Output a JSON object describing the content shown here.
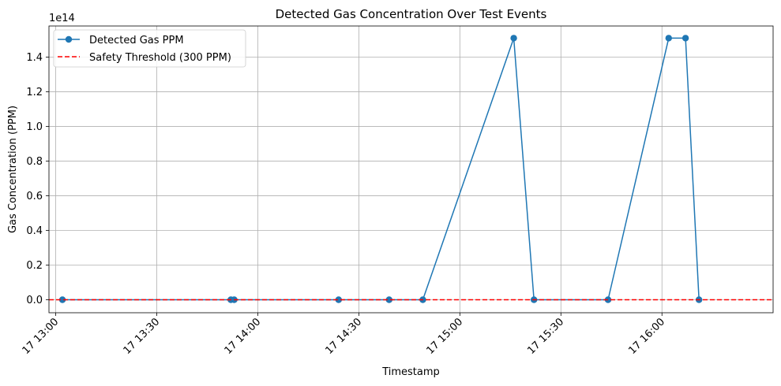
{
  "chart_data": {
    "type": "line",
    "title": "Detected Gas Concentration Over Test Events",
    "xlabel": "Timestamp",
    "ylabel": "Gas Concentration (PPM)",
    "y_offset_text": "1e14",
    "y_scale": 100000000000000.0,
    "xlim": [
      "2024-01-17 12:58",
      "2024-01-17 16:33"
    ],
    "ylim": [
      -0.075,
      1.58
    ],
    "x_ticks": [
      "17 13:00",
      "17 13:30",
      "17 14:00",
      "17 14:30",
      "17 15:00",
      "17 15:30",
      "17 16:00"
    ],
    "x_tick_values": [
      "2024-01-17 13:00",
      "2024-01-17 13:30",
      "2024-01-17 14:00",
      "2024-01-17 14:30",
      "2024-01-17 15:00",
      "2024-01-17 15:30",
      "2024-01-17 16:00"
    ],
    "y_ticks": [
      "0.0",
      "0.2",
      "0.4",
      "0.6",
      "0.8",
      "1.0",
      "1.2",
      "1.4"
    ],
    "y_tick_values": [
      0.0,
      0.2,
      0.4,
      0.6,
      0.8,
      1.0,
      1.2,
      1.4
    ],
    "grid": true,
    "legend_position": "top-left",
    "series": [
      {
        "name": "Detected Gas PPM",
        "color": "#1f77b4",
        "marker": "circle",
        "line": "solid",
        "x": [
          "2024-01-17 13:02",
          "2024-01-17 13:52",
          "2024-01-17 13:53",
          "2024-01-17 14:24",
          "2024-01-17 14:39",
          "2024-01-17 14:49",
          "2024-01-17 15:16",
          "2024-01-17 15:22",
          "2024-01-17 15:44",
          "2024-01-17 16:02",
          "2024-01-17 16:07",
          "2024-01-17 16:11"
        ],
        "y": [
          0.0,
          0.0,
          0.0,
          0.0,
          0.0,
          0.0,
          1.51,
          0.0,
          0.0,
          1.51,
          1.51,
          0.0
        ]
      },
      {
        "name": "Safety Threshold (300 PPM)",
        "color": "#ff0000",
        "line": "dashed",
        "y_constant": 300
      }
    ]
  }
}
